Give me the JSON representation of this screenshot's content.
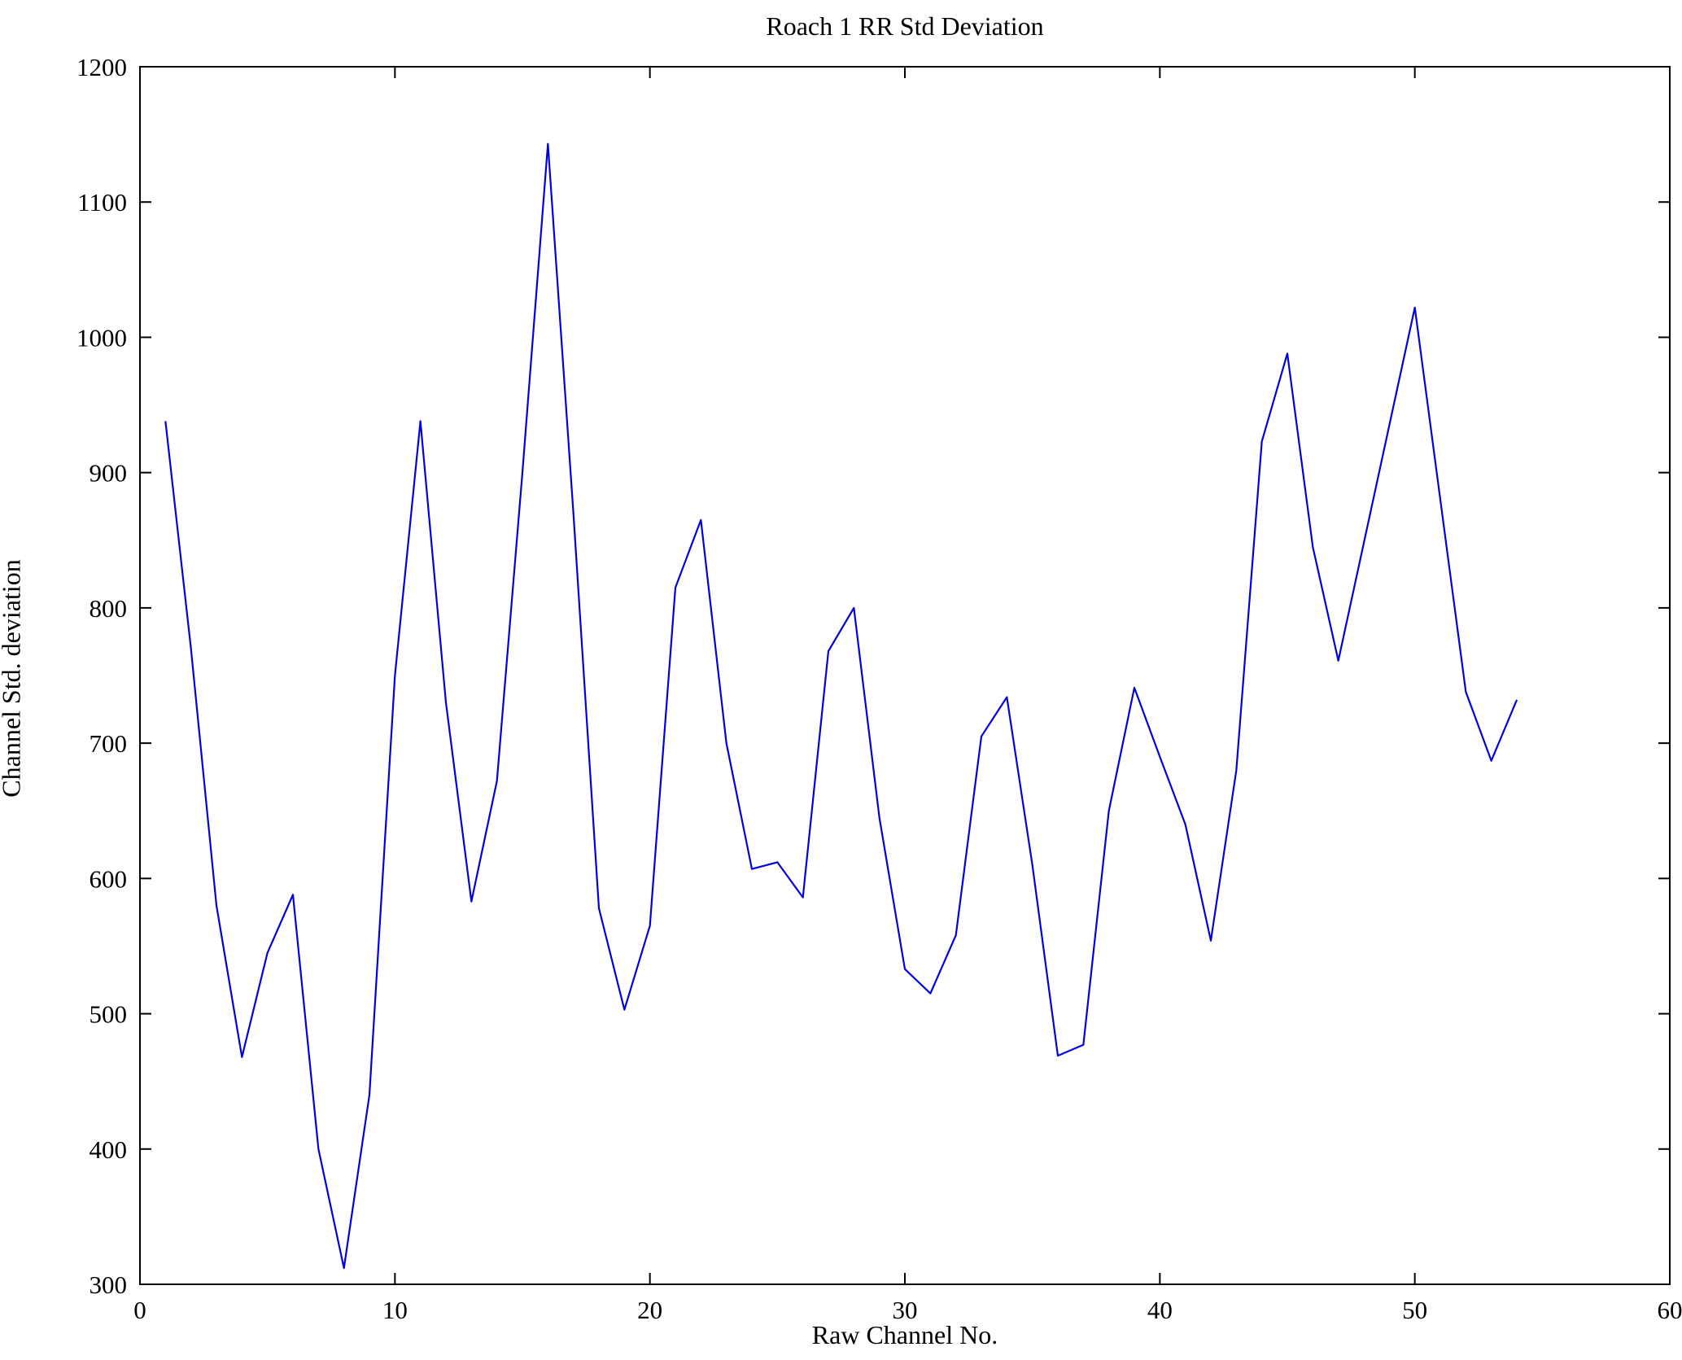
{
  "chart_data": {
    "type": "line",
    "title": "Roach 1 RR Std Deviation",
    "xlabel": "Raw Channel No.",
    "ylabel": "Channel Std. deviation",
    "xlim": [
      0,
      60
    ],
    "ylim": [
      300,
      1200
    ],
    "xticks": [
      0,
      10,
      20,
      30,
      40,
      50,
      60
    ],
    "yticks": [
      300,
      400,
      500,
      600,
      700,
      800,
      900,
      1000,
      1100,
      1200
    ],
    "grid": false,
    "legend": "none",
    "line_color": "#0000e0",
    "axis_color": "#000000",
    "x": [
      1,
      2,
      3,
      4,
      5,
      6,
      7,
      8,
      9,
      10,
      11,
      12,
      13,
      14,
      15,
      16,
      17,
      18,
      19,
      20,
      21,
      22,
      23,
      24,
      25,
      26,
      27,
      28,
      29,
      30,
      31,
      32,
      33,
      34,
      35,
      36,
      37,
      38,
      39,
      40,
      41,
      42,
      43,
      44,
      45,
      46,
      47,
      48,
      49,
      50,
      51,
      52,
      53,
      54
    ],
    "values": [
      938,
      770,
      580,
      468,
      545,
      588,
      400,
      312,
      440,
      750,
      938,
      730,
      583,
      672,
      900,
      1143,
      870,
      578,
      503,
      565,
      815,
      865,
      700,
      607,
      612,
      586,
      768,
      800,
      645,
      533,
      515,
      558,
      705,
      734,
      610,
      469,
      477,
      650,
      741,
      690,
      640,
      554,
      680,
      923,
      988,
      845,
      761,
      848,
      935,
      1022,
      880,
      738,
      687,
      732
    ]
  }
}
